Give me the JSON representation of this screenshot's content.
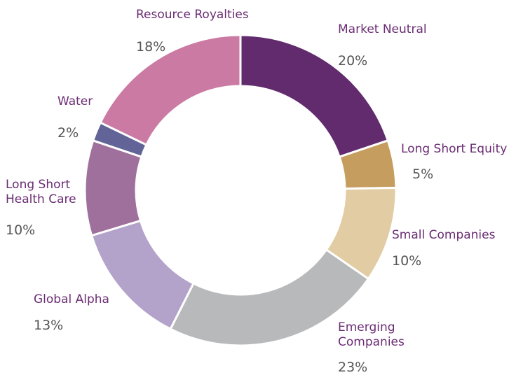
{
  "chart_data": {
    "type": "donut",
    "categories": [
      "Market Neutral",
      "Long Short Equity",
      "Small Companies",
      "Emerging Companies",
      "Global Alpha",
      "Long Short Health Care",
      "Water",
      "Resource Royalties"
    ],
    "values": [
      20,
      5,
      10,
      23,
      13,
      10,
      2,
      18
    ],
    "value_labels": [
      "20%",
      "5%",
      "10%",
      "23%",
      "13%",
      "10%",
      "2%",
      "18%"
    ],
    "colors": [
      "#612b6d",
      "#c59d5f",
      "#e2cca3",
      "#b8b9bb",
      "#b3a2c9",
      "#a0709c",
      "#626396",
      "#cb7aa4"
    ]
  }
}
